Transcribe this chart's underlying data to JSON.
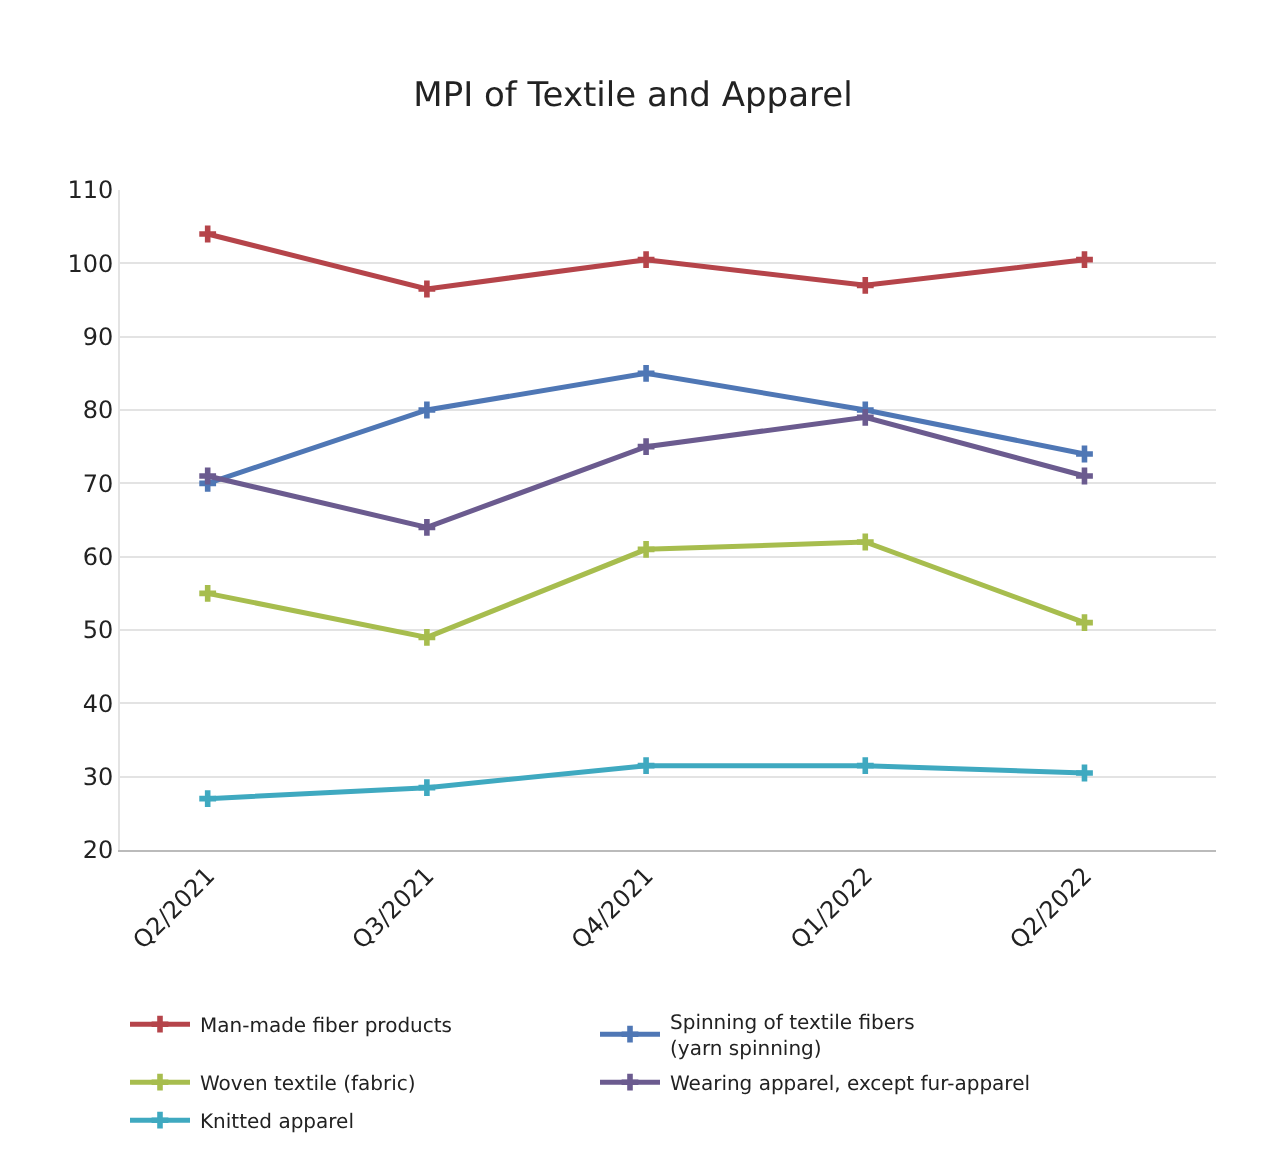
{
  "chart_data": {
    "type": "line",
    "title": "MPI of Textile and Apparel",
    "categories": [
      "Q2/2021",
      "Q3/2021",
      "Q4/2021",
      "Q1/2022",
      "Q2/2022"
    ],
    "series": [
      {
        "name": "Man-made fiber products",
        "color": "#b5444a",
        "values": [
          104,
          96.5,
          100.5,
          97,
          100.5
        ]
      },
      {
        "name": "Spinning of textile fibers\n(yarn spinning)",
        "color": "#4f77b5",
        "values": [
          70,
          80,
          85,
          80,
          74
        ]
      },
      {
        "name": "Woven textile (fabric)",
        "color": "#a7bd4e",
        "values": [
          55,
          49,
          61,
          62,
          51
        ]
      },
      {
        "name": "Wearing apparel, except fur-apparel",
        "color": "#6b5b8f",
        "values": [
          71,
          64,
          75,
          79,
          71
        ]
      },
      {
        "name": "Knitted apparel",
        "color": "#3fa9c0",
        "values": [
          27,
          28.5,
          31.5,
          31.5,
          30.5
        ]
      }
    ],
    "ylim": [
      20,
      110
    ],
    "yticks": [
      20,
      30,
      40,
      50,
      60,
      70,
      80,
      90,
      100,
      110
    ],
    "grid": "y",
    "legend": "bottom",
    "marker": "cross",
    "line_style": "solid"
  }
}
